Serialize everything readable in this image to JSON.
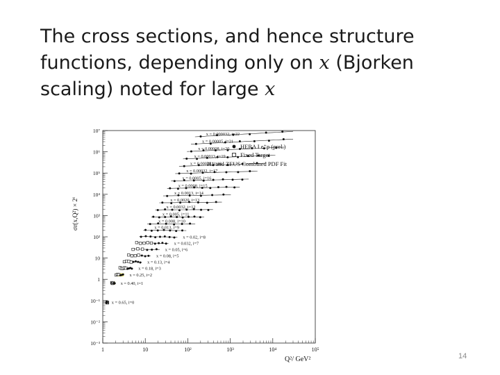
{
  "slide": {
    "title_part1": "The cross sections, and hence structure functions, depending only on ",
    "title_var1": "x",
    "title_part2": " (Bjorken scaling) noted for large ",
    "title_var2": "x",
    "page_number": "14"
  },
  "chart_data": {
    "type": "scatter",
    "xscale": "log",
    "yscale": "log",
    "xlim": [
      1,
      100000
    ],
    "ylim": [
      0.001,
      10000000
    ],
    "x_tick_labels": [
      "1",
      "10",
      "10²",
      "10³",
      "10⁴",
      "10⁵"
    ],
    "y_tick_labels": [
      "10⁻³",
      "10⁻²",
      "10⁻¹",
      "1",
      "10",
      "10²",
      "10³",
      "10⁴",
      "10⁵",
      "10⁶",
      "10⁷"
    ],
    "ylabel": "σr(x,Q²) × 2ⁱ",
    "xlabel": "Q²/ GeV²",
    "legend_position": "top-right",
    "legend": [
      {
        "label": "HERA I e⁺p (prel.)",
        "marker": "filled-circle"
      },
      {
        "label": "Fixed Target",
        "marker": "open-square"
      },
      {
        "label": "H1 and ZEUS Combined PDF Fit",
        "marker": "line"
      }
    ],
    "series": [
      {
        "name": "x = 0.000032, i=22",
        "i": 22,
        "approx_value": 0.9
      },
      {
        "name": "x = 0.00005, i=21",
        "i": 21,
        "approx_value": 0.85
      },
      {
        "name": "x = 0.00008, i=20",
        "i": 20,
        "approx_value": 0.8
      },
      {
        "name": "x = 0.00013, i=19",
        "i": 19,
        "approx_value": 0.75
      },
      {
        "name": "x = 0.00020, i=18",
        "i": 18,
        "approx_value": 0.7
      },
      {
        "name": "x = 0.00032, i=17",
        "i": 17,
        "approx_value": 0.65
      },
      {
        "name": "x = 0.0005, i=16",
        "i": 16,
        "approx_value": 0.6
      },
      {
        "name": "x = 0.0008, i=15",
        "i": 15,
        "approx_value": 0.55
      },
      {
        "name": "x = 0.0013, i=14",
        "i": 14,
        "approx_value": 0.5
      },
      {
        "name": "x = 0.0020, i=13",
        "i": 13,
        "approx_value": 0.48
      },
      {
        "name": "x = 0.0032, i=12",
        "i": 12,
        "approx_value": 0.45
      },
      {
        "name": "x = 0.005, i=11",
        "i": 11,
        "approx_value": 0.42
      },
      {
        "name": "x = 0.008, i=10",
        "i": 10,
        "approx_value": 0.4
      },
      {
        "name": "x = 0.013, i=9",
        "i": 9,
        "approx_value": 0.4
      },
      {
        "name": "x = 0.02, i=8",
        "i": 8,
        "approx_value": 0.4
      },
      {
        "name": "x = 0.032, i=7",
        "i": 7,
        "approx_value": 0.4
      },
      {
        "name": "x = 0.05, i=6",
        "i": 6,
        "approx_value": 0.4
      },
      {
        "name": "x = 0.08, i=5",
        "i": 5,
        "approx_value": 0.4
      },
      {
        "name": "x = 0.13, i=4",
        "i": 4,
        "approx_value": 0.4
      },
      {
        "name": "x = 0.18, i=3",
        "i": 3,
        "approx_value": 0.38
      },
      {
        "name": "x = 0.25, i=2",
        "i": 2,
        "approx_value": 0.36
      },
      {
        "name": "x = 0.40, i=1",
        "i": 1,
        "approx_value": 0.26
      },
      {
        "name": "x = 0.65, i=0",
        "i": 0,
        "approx_value": 0.06
      }
    ]
  }
}
